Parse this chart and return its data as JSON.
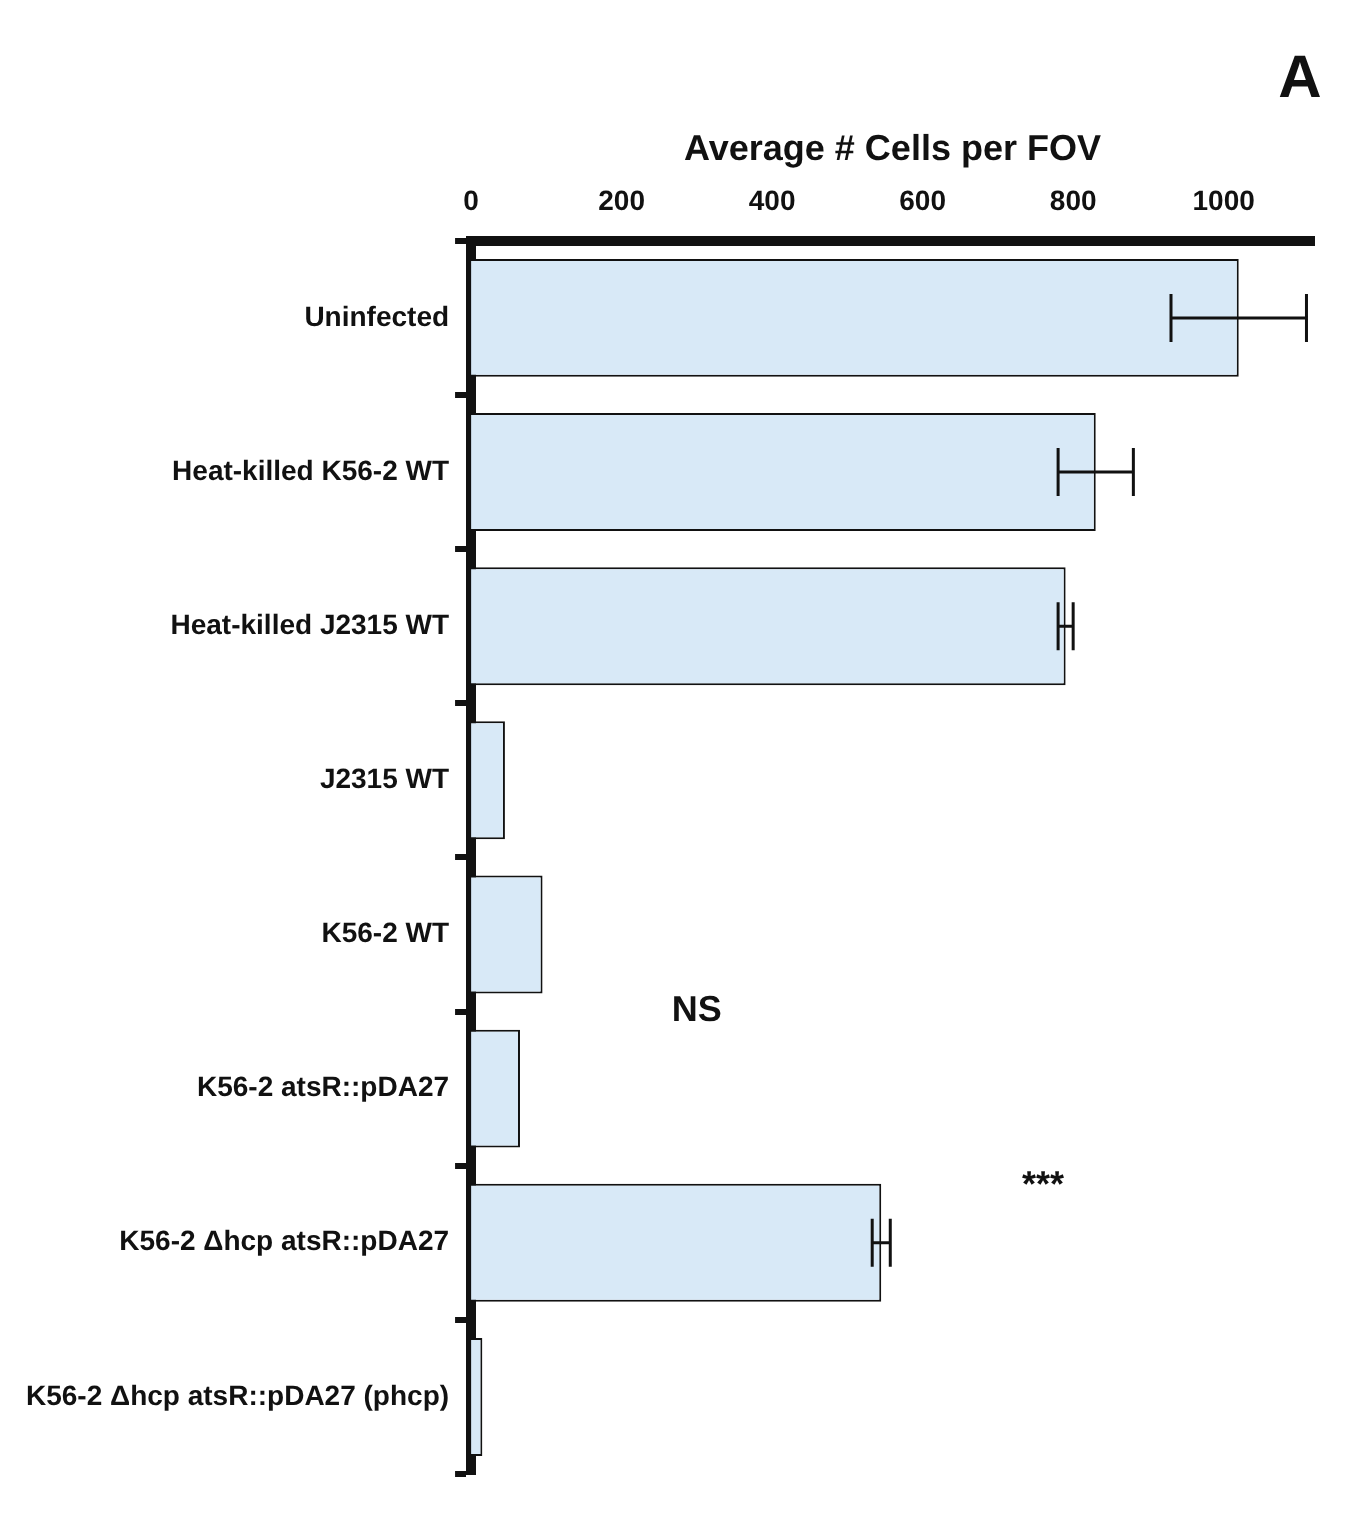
{
  "chart_data": {
    "type": "bar",
    "orientation": "horizontal",
    "xlabel": "Average # Cells per FOV",
    "categories": [
      "Uninfected",
      "Heat-killed K56-2 WT",
      "Heat-killed J2315 WT",
      "J2315 WT",
      "K56-2 WT",
      "K56-2 atsR::pDA27",
      "K56-2 Δhcp atsR::pDA27",
      "K56-2 Δhcp atsR::pDA27 (phcp)"
    ],
    "values": [
      1020,
      830,
      790,
      45,
      95,
      65,
      545,
      15
    ],
    "errors": [
      90,
      50,
      10,
      null,
      null,
      null,
      12,
      null
    ],
    "color": "#d8e9f7",
    "xlim": [
      0,
      1120
    ],
    "xticks": [
      0,
      200,
      400,
      600,
      800,
      1000
    ],
    "grid": false,
    "legend": false,
    "annotations": [
      "A",
      "NS",
      "***"
    ]
  }
}
